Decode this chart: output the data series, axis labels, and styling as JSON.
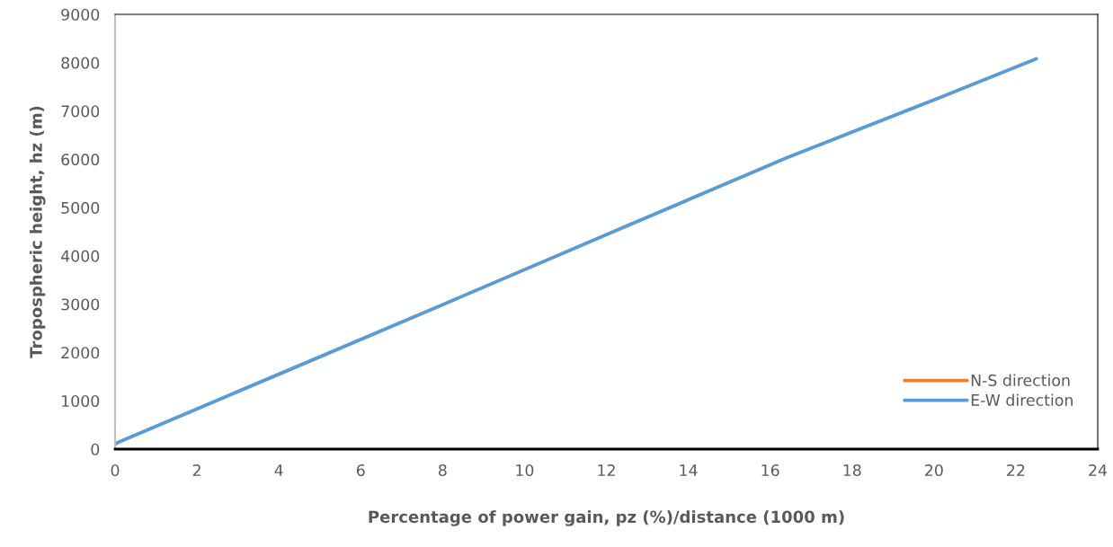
{
  "chart_data": {
    "type": "line",
    "xlabel": "Percentage of power gain, pz (%)/distance (1000 m)",
    "ylabel": "Tropospheric height, hz (m)",
    "series": [
      {
        "name": "N-S direction",
        "color": "#ed7d31",
        "values": [
          null,
          null,
          null,
          null,
          null,
          null,
          null,
          null
        ]
      },
      {
        "name": "E-W direction",
        "color": "#5b9bd5",
        "x": [
          0,
          0.1,
          4,
          8,
          12,
          16.4,
          20,
          22.5
        ],
        "values": [
          100,
          150,
          1550,
          2990,
          4440,
          6030,
          7230,
          8080
        ]
      }
    ],
    "xlim": [
      0,
      24
    ],
    "xticks": [
      0,
      2,
      4,
      6,
      8,
      10,
      12,
      14,
      16,
      18,
      20,
      22,
      24
    ],
    "ylim": [
      0,
      9000
    ],
    "yticks": [
      0,
      1000,
      2000,
      3000,
      4000,
      5000,
      6000,
      7000,
      8000,
      9000
    ],
    "grid": false,
    "legend": "bottom right",
    "marker": "none",
    "line_style": "solid"
  }
}
